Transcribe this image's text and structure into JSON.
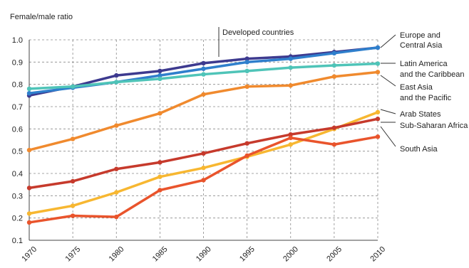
{
  "chart_data": {
    "type": "line",
    "title": "",
    "ylabel": "Female/male ratio",
    "xlabel": "",
    "x": [
      1970,
      1975,
      1980,
      1985,
      1990,
      1995,
      2000,
      2005,
      2010
    ],
    "x_tick_labels": [
      "1970",
      "1975",
      "1980",
      "1985",
      "1990",
      "1995",
      "2000",
      "2005",
      "2010"
    ],
    "ylim": [
      0.1,
      1.0
    ],
    "y_ticks": [
      0.1,
      0.2,
      0.3,
      0.4,
      0.5,
      0.6,
      0.7,
      0.8,
      0.9,
      1.0
    ],
    "y_tick_labels": [
      "0.1",
      "0.2",
      "0.3",
      "0.4",
      "0.5",
      "0.6",
      "0.7",
      "0.8",
      "0.9",
      "1.0"
    ],
    "grid": true,
    "legend": "line-end labels on the right",
    "annotation": "Developed countries",
    "series": [
      {
        "name": "Developed countries",
        "color": "#3d3a8f",
        "label_lines": [],
        "values": [
          0.75,
          0.79,
          0.84,
          0.86,
          0.895,
          0.915,
          0.925,
          0.945,
          0.965
        ]
      },
      {
        "name": "Europe and Central Asia",
        "color": "#2f7fcc",
        "label_lines": [
          "Europe and",
          "Central Asia"
        ],
        "values": [
          0.76,
          0.785,
          0.81,
          0.84,
          0.87,
          0.9,
          0.915,
          0.94,
          0.965
        ]
      },
      {
        "name": "Latin America and the Caribbean",
        "color": "#4fc4b8",
        "label_lines": [
          "Latin America",
          "and the Caribbean"
        ],
        "values": [
          0.78,
          0.79,
          0.81,
          0.825,
          0.845,
          0.86,
          0.875,
          0.885,
          0.893
        ]
      },
      {
        "name": "East Asia and the Pacific",
        "color": "#f08a2e",
        "label_lines": [
          "East Asia",
          "and the Pacific"
        ],
        "values": [
          0.505,
          0.555,
          0.615,
          0.67,
          0.755,
          0.79,
          0.795,
          0.835,
          0.855
        ]
      },
      {
        "name": "Arab States",
        "color": "#f7b731",
        "label_lines": [
          "Arab States"
        ],
        "values": [
          0.22,
          0.255,
          0.315,
          0.385,
          0.425,
          0.475,
          0.53,
          0.6,
          0.675
        ]
      },
      {
        "name": "Sub-Saharan Africa",
        "color": "#c63a2c",
        "label_lines": [
          "Sub-Saharan Africa"
        ],
        "values": [
          0.335,
          0.365,
          0.42,
          0.45,
          0.49,
          0.535,
          0.575,
          0.605,
          0.645
        ]
      },
      {
        "name": "South Asia",
        "color": "#e9542c",
        "label_lines": [
          "South Asia"
        ],
        "values": [
          0.18,
          0.21,
          0.205,
          0.325,
          0.37,
          0.48,
          0.56,
          0.53,
          0.565
        ]
      }
    ]
  }
}
